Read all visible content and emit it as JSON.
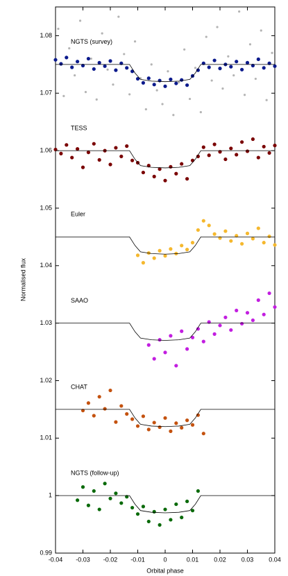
{
  "chart_data": {
    "type": "scatter",
    "xlabel": "Orbital phase",
    "ylabel": "Normalised flux",
    "xlim": [
      -0.04,
      0.04
    ],
    "ylim": [
      0.99,
      1.085
    ],
    "xticks": [
      -0.04,
      -0.03,
      -0.02,
      -0.01,
      0,
      0.01,
      0.02,
      0.03,
      0.04
    ],
    "yticks": [
      0.99,
      1,
      1.01,
      1.02,
      1.03,
      1.04,
      1.05,
      1.06,
      1.07,
      1.08
    ],
    "series": [
      {
        "color": "#b4b4b4",
        "mode": "points",
        "x": [
          -0.039,
          -0.037,
          -0.035,
          -0.033,
          -0.031,
          -0.029,
          -0.027,
          -0.025,
          -0.023,
          -0.021,
          -0.019,
          -0.017,
          -0.015,
          -0.013,
          -0.011,
          -0.009,
          -0.007,
          -0.005,
          -0.003,
          -0.001,
          0.001,
          0.003,
          0.005,
          0.007,
          0.009,
          0.011,
          0.013,
          0.015,
          0.017,
          0.019,
          0.021,
          0.023,
          0.025,
          0.027,
          0.029,
          0.031,
          0.033,
          0.035,
          0.037,
          0.039
        ],
        "values": [
          1.0812,
          1.0695,
          1.0778,
          1.0731,
          1.0826,
          1.0702,
          1.076,
          1.0689,
          1.0804,
          1.0741,
          1.0715,
          1.0833,
          1.0768,
          1.0698,
          1.079,
          1.0726,
          1.0672,
          1.075,
          1.0705,
          1.0681,
          1.0738,
          1.0662,
          1.0719,
          1.0776,
          1.069,
          1.0744,
          1.0667,
          1.0798,
          1.0722,
          1.0815,
          1.0708,
          1.0764,
          1.0731,
          1.0842,
          1.0697,
          1.0785,
          1.0725,
          1.0809,
          1.0688,
          1.077
        ]
      },
      {
        "name": "NGTS (survey)",
        "color": "#0b1a8c",
        "mode": "points",
        "x": [
          -0.04,
          -0.038,
          -0.036,
          -0.034,
          -0.032,
          -0.03,
          -0.028,
          -0.026,
          -0.024,
          -0.022,
          -0.02,
          -0.018,
          -0.016,
          -0.014,
          -0.012,
          -0.01,
          -0.008,
          -0.006,
          -0.004,
          -0.002,
          0,
          0.002,
          0.004,
          0.006,
          0.008,
          0.01,
          0.012,
          0.014,
          0.016,
          0.018,
          0.02,
          0.022,
          0.024,
          0.026,
          0.028,
          0.03,
          0.032,
          0.034,
          0.036,
          0.038,
          0.04
        ],
        "values": [
          1.0758,
          1.0751,
          1.0762,
          1.0745,
          1.0755,
          1.0748,
          1.076,
          1.0742,
          1.0753,
          1.0747,
          1.0756,
          1.074,
          1.0752,
          1.0744,
          1.0738,
          1.0725,
          1.0718,
          1.0726,
          1.0715,
          1.0722,
          1.0712,
          1.0724,
          1.0717,
          1.0723,
          1.0714,
          1.073,
          1.074,
          1.0752,
          1.0745,
          1.0757,
          1.0743,
          1.075,
          1.0746,
          1.0755,
          1.0741,
          1.0753,
          1.0748,
          1.0759,
          1.0744,
          1.0752,
          1.0747
        ]
      },
      {
        "color": "#000000",
        "mode": "line",
        "x": [
          -0.04,
          -0.013,
          -0.011,
          -0.009,
          -0.005,
          0,
          0.005,
          0.009,
          0.011,
          0.013,
          0.04
        ],
        "values": [
          1.075,
          1.075,
          1.0735,
          1.0724,
          1.0721,
          1.072,
          1.0721,
          1.0724,
          1.0735,
          1.075,
          1.075
        ]
      },
      {
        "name": "TESS",
        "color": "#7a0000",
        "mode": "points",
        "x": [
          -0.04,
          -0.038,
          -0.036,
          -0.034,
          -0.032,
          -0.03,
          -0.028,
          -0.026,
          -0.024,
          -0.022,
          -0.02,
          -0.018,
          -0.016,
          -0.014,
          -0.012,
          -0.01,
          -0.008,
          -0.006,
          -0.004,
          -0.002,
          0,
          0.002,
          0.004,
          0.006,
          0.008,
          0.01,
          0.012,
          0.014,
          0.016,
          0.018,
          0.02,
          0.022,
          0.024,
          0.026,
          0.028,
          0.03,
          0.032,
          0.034,
          0.036,
          0.038,
          0.04
        ],
        "values": [
          1.0602,
          1.0595,
          1.061,
          1.0588,
          1.0603,
          1.0571,
          1.0597,
          1.0612,
          1.0584,
          1.06,
          1.0576,
          1.0605,
          1.059,
          1.0608,
          1.0583,
          1.0579,
          1.0562,
          1.0574,
          1.0555,
          1.0568,
          1.0548,
          1.0572,
          1.056,
          1.0577,
          1.0551,
          1.0583,
          1.059,
          1.0606,
          1.0592,
          1.0611,
          1.0598,
          1.0585,
          1.0604,
          1.0593,
          1.0615,
          1.0599,
          1.062,
          1.0588,
          1.0607,
          1.0596,
          1.0609
        ]
      },
      {
        "color": "#000000",
        "mode": "line",
        "x": [
          -0.04,
          -0.013,
          -0.011,
          -0.009,
          -0.005,
          0,
          0.005,
          0.009,
          0.011,
          0.013,
          0.04
        ],
        "values": [
          1.06,
          1.06,
          1.0585,
          1.0574,
          1.0571,
          1.057,
          1.0571,
          1.0574,
          1.0585,
          1.06,
          1.06
        ]
      },
      {
        "name": "Euler",
        "color": "#f5b82e",
        "mode": "points",
        "x": [
          -0.01,
          -0.008,
          -0.006,
          -0.004,
          -0.002,
          0,
          0.002,
          0.004,
          0.006,
          0.008,
          0.01,
          0.012,
          0.014,
          0.016,
          0.018,
          0.02,
          0.022,
          0.024,
          0.026,
          0.028,
          0.03,
          0.032,
          0.034,
          0.036,
          0.038,
          0.04
        ],
        "values": [
          1.0418,
          1.0405,
          1.0422,
          1.0413,
          1.0426,
          1.0417,
          1.0429,
          1.0421,
          1.0435,
          1.0428,
          1.044,
          1.0462,
          1.0478,
          1.047,
          1.0455,
          1.0448,
          1.046,
          1.0443,
          1.0452,
          1.0438,
          1.0456,
          1.0447,
          1.0465,
          1.044,
          1.0451,
          1.0436
        ]
      },
      {
        "color": "#000000",
        "mode": "line",
        "x": [
          -0.04,
          -0.013,
          -0.011,
          -0.009,
          -0.005,
          0,
          0.005,
          0.009,
          0.011,
          0.013,
          0.04
        ],
        "values": [
          1.045,
          1.045,
          1.0435,
          1.0424,
          1.0421,
          1.042,
          1.0421,
          1.0424,
          1.0435,
          1.045,
          1.045
        ]
      },
      {
        "name": "SAAO",
        "color": "#c21ee0",
        "mode": "points",
        "x": [
          -0.006,
          -0.004,
          -0.002,
          0,
          0.002,
          0.004,
          0.006,
          0.008,
          0.01,
          0.012,
          0.014,
          0.016,
          0.018,
          0.02,
          0.022,
          0.024,
          0.026,
          0.028,
          0.03,
          0.032,
          0.034,
          0.036,
          0.038,
          0.04
        ],
        "values": [
          1.0262,
          1.0238,
          1.0271,
          1.0249,
          1.0278,
          1.0226,
          1.0286,
          1.0255,
          1.0275,
          1.029,
          1.0268,
          1.0302,
          1.0281,
          1.0296,
          1.031,
          1.0288,
          1.0322,
          1.0299,
          1.0318,
          1.0305,
          1.034,
          1.0315,
          1.0352,
          1.0328
        ]
      },
      {
        "color": "#000000",
        "mode": "line",
        "x": [
          -0.04,
          -0.013,
          -0.011,
          -0.009,
          -0.005,
          0,
          0.005,
          0.009,
          0.011,
          0.013,
          0.04
        ],
        "values": [
          1.03,
          1.03,
          1.0285,
          1.0274,
          1.0271,
          1.027,
          1.0271,
          1.0274,
          1.0285,
          1.03,
          1.03
        ]
      },
      {
        "name": "CHAT",
        "color": "#c4520f",
        "mode": "points",
        "x": [
          -0.03,
          -0.028,
          -0.026,
          -0.024,
          -0.022,
          -0.02,
          -0.018,
          -0.016,
          -0.014,
          -0.012,
          -0.01,
          -0.008,
          -0.006,
          -0.004,
          -0.002,
          0,
          0.002,
          0.004,
          0.006,
          0.008,
          0.01,
          0.012,
          0.014
        ],
        "values": [
          1.0148,
          1.0161,
          1.0139,
          1.0172,
          1.0151,
          1.0183,
          1.0128,
          1.0156,
          1.0142,
          1.0133,
          1.0121,
          1.0138,
          1.0115,
          1.0127,
          1.0119,
          1.0135,
          1.0112,
          1.0126,
          1.0118,
          1.0131,
          1.0123,
          1.014,
          1.0108
        ]
      },
      {
        "color": "#000000",
        "mode": "line",
        "x": [
          -0.04,
          -0.013,
          -0.011,
          -0.009,
          -0.005,
          0,
          0.005,
          0.009,
          0.011,
          0.013,
          0.04
        ],
        "values": [
          1.015,
          1.015,
          1.0135,
          1.0124,
          1.0121,
          1.012,
          1.0121,
          1.0124,
          1.0135,
          1.015,
          1.015
        ]
      },
      {
        "name": "NGTS (follow-up)",
        "color": "#0a6a0a",
        "mode": "points",
        "x": [
          -0.032,
          -0.03,
          -0.028,
          -0.026,
          -0.024,
          -0.022,
          -0.02,
          -0.018,
          -0.016,
          -0.014,
          -0.012,
          -0.01,
          -0.008,
          -0.006,
          -0.004,
          -0.002,
          0,
          0.002,
          0.004,
          0.006,
          0.008,
          0.01,
          0.012
        ],
        "values": [
          0.9992,
          1.0015,
          0.9983,
          1.0008,
          0.9976,
          1.0021,
          0.9995,
          1.0004,
          0.9987,
          0.9998,
          0.9979,
          0.9968,
          0.9981,
          0.9955,
          0.9972,
          0.9949,
          0.9976,
          0.9958,
          0.9985,
          0.9962,
          0.999,
          0.9974,
          1.0008
        ]
      },
      {
        "color": "#000000",
        "mode": "line",
        "x": [
          -0.04,
          -0.013,
          -0.011,
          -0.009,
          -0.005,
          0,
          0.005,
          0.009,
          0.011,
          0.013,
          0.04
        ],
        "values": [
          1,
          1,
          0.9985,
          0.9974,
          0.9971,
          0.997,
          0.9971,
          0.9974,
          0.9985,
          1,
          1
        ]
      }
    ]
  }
}
